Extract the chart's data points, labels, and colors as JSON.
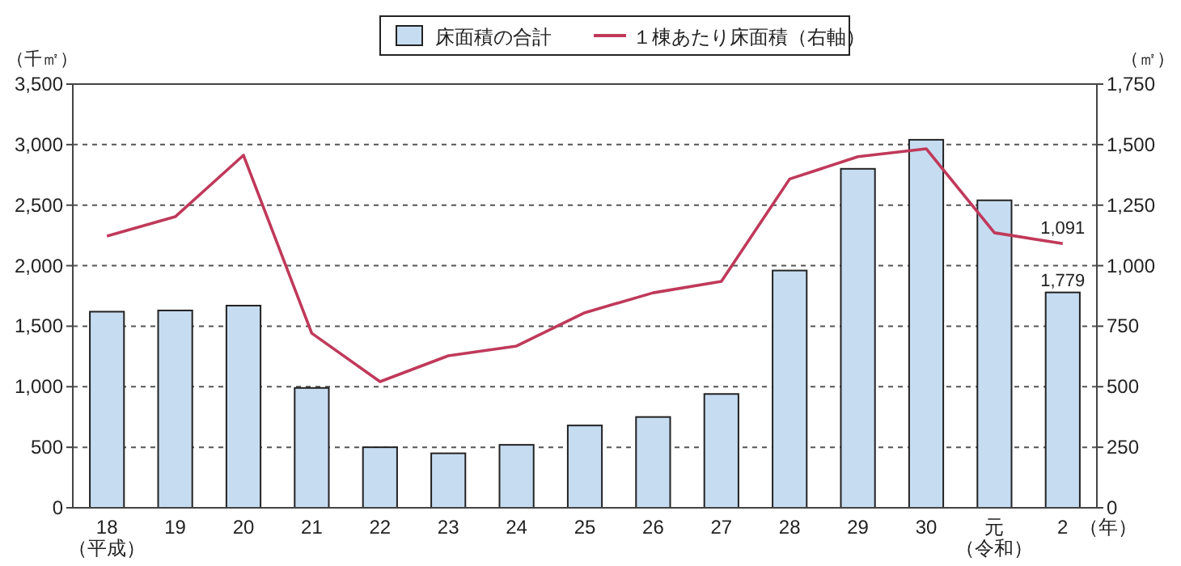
{
  "chart_data": {
    "type": "bar",
    "ylabel": "（千㎡）",
    "y2label": "（㎡）",
    "xlabel": "（年）",
    "categories": [
      "18（平成）",
      "19",
      "20",
      "21",
      "22",
      "23",
      "24",
      "25",
      "26",
      "27",
      "28",
      "29",
      "30",
      "元（令和）",
      "2"
    ],
    "series": [
      {
        "name": "床面積の合計",
        "color": "#c6dcf1",
        "values": [
          1620,
          1630,
          1670,
          990,
          500,
          450,
          520,
          680,
          750,
          940,
          1960,
          2800,
          3040,
          2540,
          1779
        ],
        "value_labels": [
          null,
          null,
          null,
          null,
          null,
          null,
          null,
          null,
          null,
          null,
          null,
          null,
          null,
          null,
          "1,779"
        ]
      },
      {
        "name": "１棟あたり床面積（右軸）",
        "type": "line",
        "axis": "y2",
        "color": "#c0395a",
        "marker": "none",
        "line_style": "solid",
        "values": [
          1122,
          1202,
          1456,
          721,
          521,
          628,
          668,
          806,
          888,
          935,
          1358,
          1450,
          1483,
          1136,
          1091
        ],
        "value_labels": [
          null,
          null,
          null,
          null,
          null,
          null,
          null,
          null,
          null,
          null,
          null,
          null,
          null,
          null,
          "1,091"
        ]
      }
    ],
    "ylim": [
      0,
      3500
    ],
    "yticks": [
      0,
      500,
      {
        "value": 1000,
        "label": "1,000"
      },
      {
        "value": 1500,
        "label": "1,500"
      },
      {
        "value": 2000,
        "label": "2,000"
      },
      {
        "value": 2500,
        "label": "2,500"
      },
      {
        "value": 3000,
        "label": "3,000"
      },
      {
        "value": 3500,
        "label": "3,500"
      }
    ],
    "y2lim": [
      0,
      1750
    ],
    "y2ticks": [
      0,
      250,
      500,
      750,
      {
        "value": 1000,
        "label": "1,000"
      },
      {
        "value": 1250,
        "label": "1,250"
      },
      {
        "value": 1500,
        "label": "1,500"
      },
      {
        "value": 1750,
        "label": "1,750"
      }
    ],
    "grid": "y",
    "legend": "top"
  }
}
